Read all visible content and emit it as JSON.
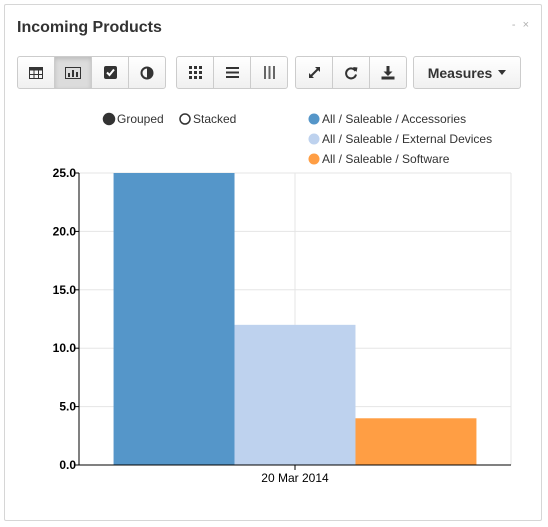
{
  "header": {
    "title": "Incoming Products",
    "controls": "- ×"
  },
  "toolbar": {
    "group1": [
      {
        "name": "table-view-button",
        "icon": "table-icon",
        "active": false
      },
      {
        "name": "graph-view-button",
        "icon": "bar-chart-icon",
        "active": true
      },
      {
        "name": "checkbox-view-button",
        "icon": "check-square-icon",
        "active": false
      },
      {
        "name": "pie-view-button",
        "icon": "contrast-icon",
        "active": false
      }
    ],
    "group2": [
      {
        "name": "grid-button",
        "icon": "grid-icon"
      },
      {
        "name": "list-button",
        "icon": "list-icon"
      },
      {
        "name": "columns-button",
        "icon": "columns-icon"
      }
    ],
    "group3": [
      {
        "name": "expand-button",
        "icon": "expand-icon"
      },
      {
        "name": "refresh-button",
        "icon": "refresh-icon"
      },
      {
        "name": "download-button",
        "icon": "download-icon"
      }
    ],
    "measures_label": "Measures"
  },
  "mode": {
    "grouped_label": "Grouped",
    "stacked_label": "Stacked",
    "selected": "grouped"
  },
  "chart_data": {
    "type": "bar",
    "categories": [
      "20 Mar 2014"
    ],
    "series": [
      {
        "name": "All / Saleable / Accessories",
        "color": "#5596c9",
        "values": [
          25
        ]
      },
      {
        "name": "All / Saleable / External Devices",
        "color": "#bed2ee",
        "values": [
          12
        ]
      },
      {
        "name": "All / Saleable / Software",
        "color": "#ff9e44",
        "values": [
          4
        ]
      }
    ],
    "ylim": [
      0,
      25
    ],
    "yticks": [
      "0.0",
      "5.0",
      "10.0",
      "15.0",
      "20.0",
      "25.0"
    ],
    "grid": true,
    "legend_position": "top-right"
  }
}
